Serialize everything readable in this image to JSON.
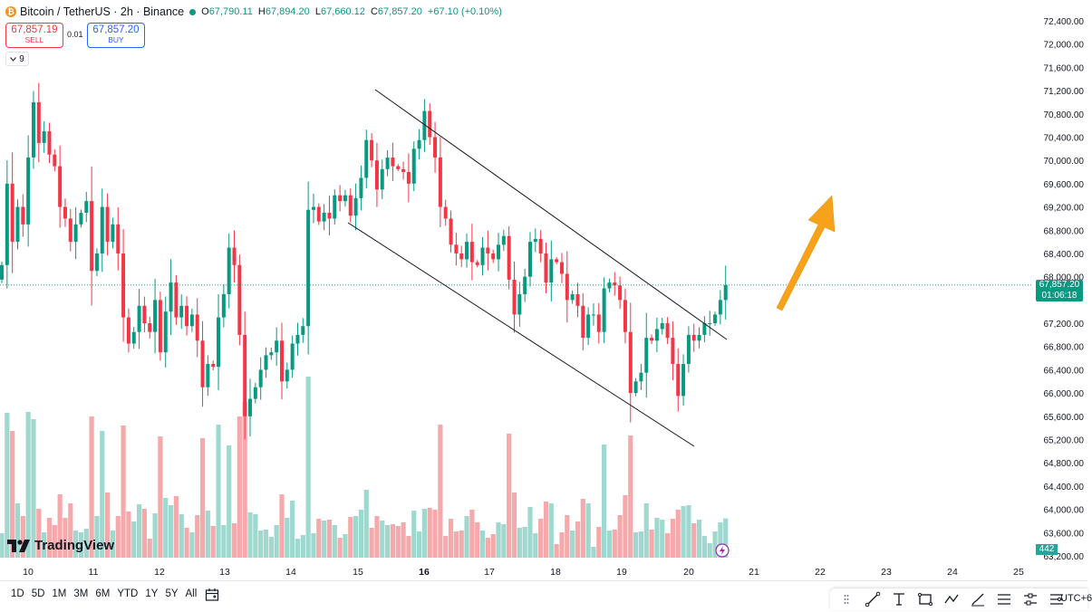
{
  "header": {
    "coin_symbol": "₿",
    "title": "Bitcoin / TetherUS · 2h · Binance",
    "ohlc": [
      {
        "key": "O",
        "value": "67,790.11"
      },
      {
        "key": "H",
        "value": "67,894.20"
      },
      {
        "key": "L",
        "value": "67,660.12"
      },
      {
        "key": "C",
        "value": "67,857.20"
      }
    ],
    "change": "+67.10 (+0.10%)"
  },
  "trade": {
    "sell_price": "67,857.19",
    "sell_label": "SELL",
    "buy_price": "67,857.20",
    "buy_label": "BUY",
    "spread": "0.01"
  },
  "indicators": {
    "count": "9"
  },
  "logo": {
    "text": "TradingView"
  },
  "price_label": {
    "price": "67,857.20",
    "countdown": "01:06:18"
  },
  "volume_label": "442",
  "range_buttons": [
    "1D",
    "5D",
    "1M",
    "3M",
    "6M",
    "YTD",
    "1Y",
    "5Y",
    "All"
  ],
  "timezone": "UTC+6",
  "drawing_tools": [
    "pointer-icon",
    "trendline-icon",
    "ray-icon",
    "rectangle-icon",
    "path-icon",
    "brush-icon",
    "fib-icon",
    "long-position-icon",
    "text-icon"
  ],
  "colors": {
    "up": "#089981",
    "down": "#f23645",
    "vol_up": "#9fd8cf",
    "vol_down": "#f5a9ab",
    "arrow": "#f7a21b"
  },
  "chart_data": {
    "type": "candlestick",
    "title": "Bitcoin / TetherUS · 2h · Binance",
    "ylim": [
      63200,
      72400
    ],
    "yticks": [
      "72,400.00",
      "72,000.00",
      "71,600.00",
      "71,200.00",
      "70,800.00",
      "70,400.00",
      "70,000.00",
      "69,600.00",
      "69,200.00",
      "68,800.00",
      "68,400.00",
      "68,000.00",
      "67,200.00",
      "66,800.00",
      "66,400.00",
      "66,000.00",
      "65,600.00",
      "65,200.00",
      "64,800.00",
      "64,400.00",
      "64,000.00",
      "63,600.00",
      "63,200.00"
    ],
    "xticks": [
      "10",
      "11",
      "12",
      "13",
      "14",
      "15",
      "16",
      "17",
      "18",
      "19",
      "20",
      "21",
      "22",
      "23",
      "24",
      "25"
    ],
    "current_price": 67857.2,
    "candles_close": [
      68200,
      69600,
      68600,
      69200,
      68900,
      70050,
      71000,
      70300,
      70500,
      70100,
      69900,
      69200,
      69000,
      68600,
      68900,
      69100,
      69300,
      68100,
      68400,
      69200,
      68600,
      68900,
      68400,
      67300,
      66850,
      67050,
      67500,
      67200,
      67050,
      67600,
      66700,
      67400,
      67900,
      67300,
      67500,
      67150,
      67350,
      66900,
      66100,
      66500,
      66450,
      67300,
      67700,
      68500,
      68200,
      67000,
      65600,
      65900,
      66100,
      66400,
      66650,
      66700,
      66900,
      66200,
      66400,
      66850,
      67000,
      67150,
      69150,
      69200,
      68950,
      69100,
      69000,
      69400,
      69300,
      69400,
      69050,
      69350,
      69700,
      70350,
      70000,
      69500,
      69850,
      70050,
      69900,
      69850,
      69800,
      69600,
      70200,
      70350,
      70850,
      70400,
      70050,
      69200,
      69000,
      68550,
      68400,
      68300,
      68600,
      68250,
      68200,
      68500,
      68400,
      68300,
      68550,
      68700,
      67950,
      67350,
      67700,
      68000,
      68600,
      68650,
      68400,
      67900,
      68300,
      68250,
      68050,
      67600,
      67700,
      67500,
      66950,
      67350,
      67350,
      67050,
      67800,
      67900,
      67850,
      67600,
      67050,
      66000,
      66200,
      66350,
      66950,
      66900,
      67100,
      67200,
      66950,
      66500,
      65950,
      66500,
      67000,
      66900,
      67000,
      67200,
      67200,
      67350,
      67600,
      67857
    ]
  }
}
